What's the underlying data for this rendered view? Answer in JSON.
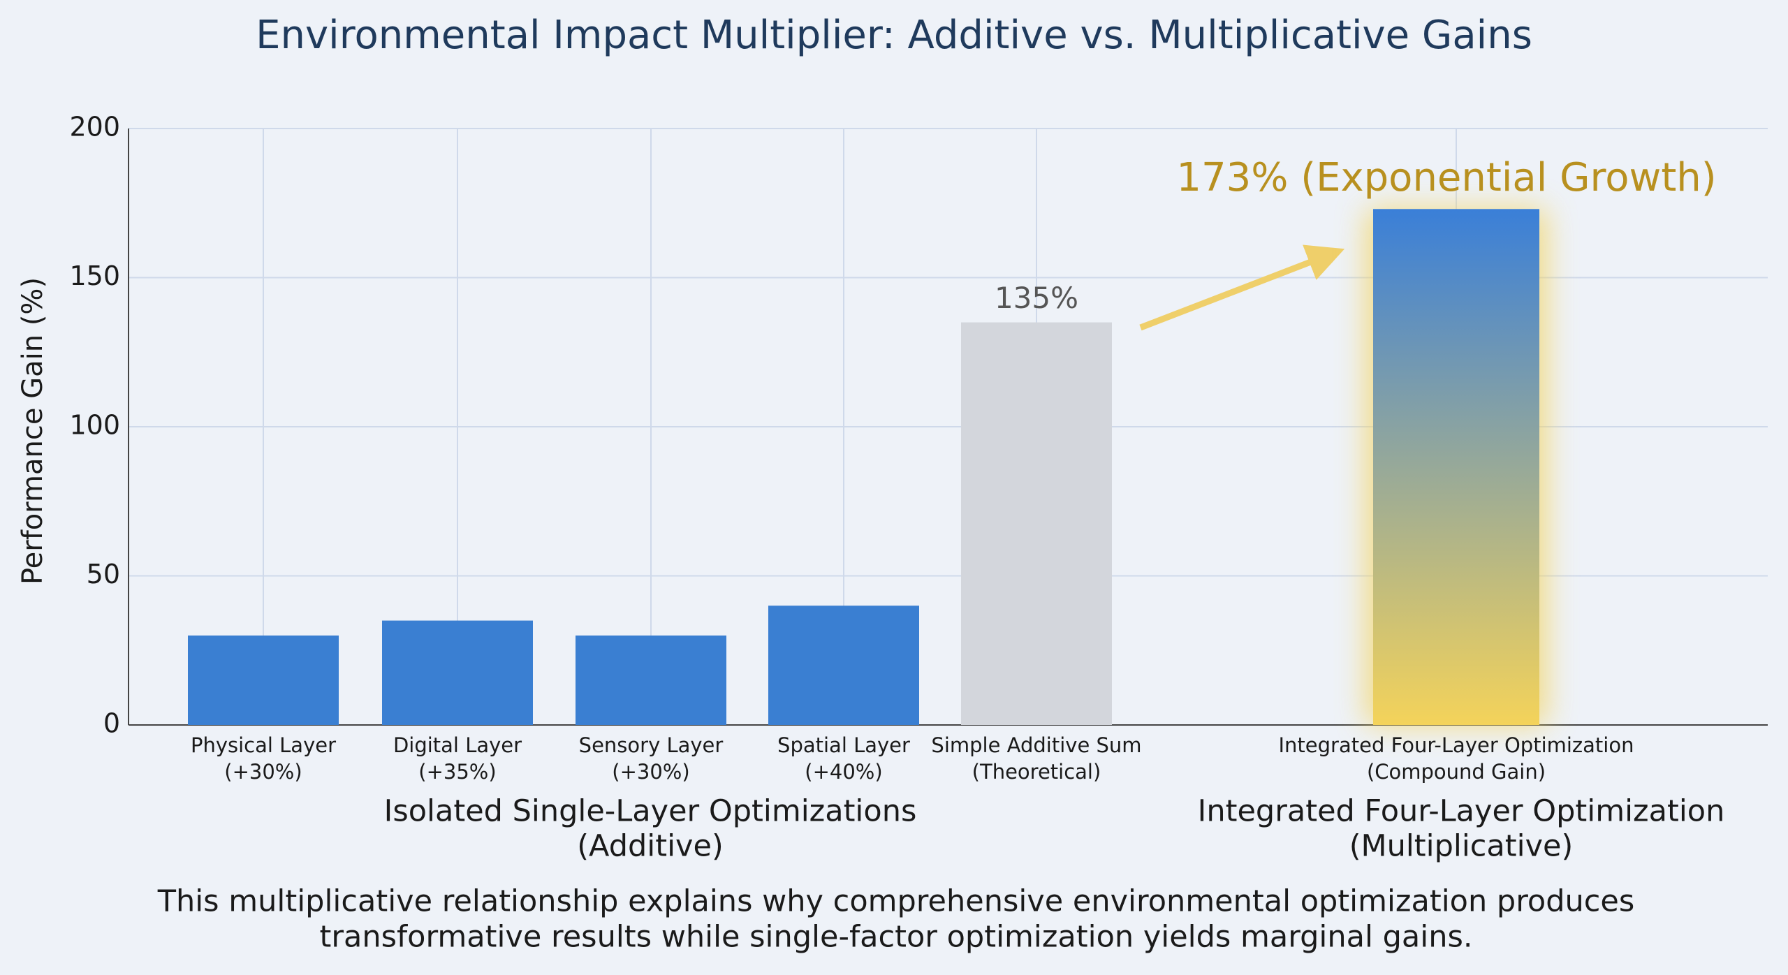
{
  "chart_data": {
    "type": "bar",
    "title": "Environmental Impact Multiplier: Additive vs. Multiplicative Gains",
    "ylabel": "Performance Gain (%)",
    "categories": [
      [
        "Physical Layer",
        "(+30%)"
      ],
      [
        "Digital Layer",
        "(+35%)"
      ],
      [
        "Sensory Layer",
        "(+30%)"
      ],
      [
        "Spatial Layer",
        "(+40%)"
      ],
      [
        "Simple Additive Sum",
        "(Theoretical)"
      ],
      [
        "Integrated Four-Layer Optimization",
        "(Compound Gain)"
      ]
    ],
    "values": [
      30,
      35,
      30,
      40,
      135,
      173
    ],
    "value_labels": [
      null,
      null,
      null,
      null,
      "135%",
      "173% (Exponential Growth)"
    ],
    "colors": [
      "#3a7fd2",
      "#3a7fd2",
      "#3a7fd2",
      "#3a7fd2",
      "#d3d6dc",
      "#3a7fd2"
    ],
    "highlight_gradient": [
      "#3a7fd8",
      "#f4d35a"
    ],
    "group_labels": [
      [
        "Isolated Single-Layer Optimizations",
        "(Additive)"
      ],
      [
        "Integrated Four-Layer Optimization",
        "(Multiplicative)"
      ]
    ],
    "note": [
      "This multiplicative relationship explains why comprehensive environmental optimization produces",
      "transformative results while single-factor optimization yields marginal gains."
    ],
    "ylim": [
      0,
      200
    ],
    "yticks": [
      0,
      50,
      100,
      150,
      200
    ],
    "grid": true
  }
}
